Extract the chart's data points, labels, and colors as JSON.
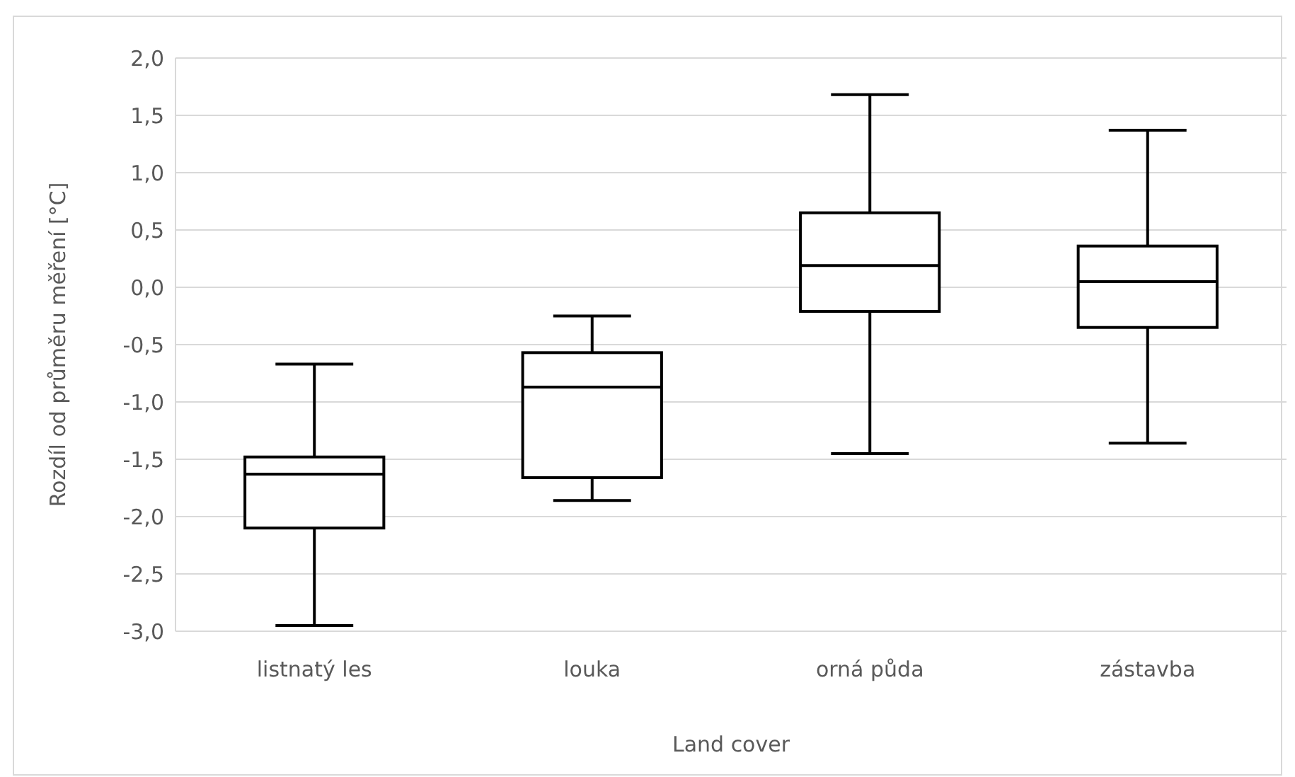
{
  "chart_data": {
    "type": "box",
    "xlabel": "Land cover",
    "ylabel": "Rozdíl od průměru měření [°C]",
    "categories": [
      "listnatý les",
      "louka",
      "orná půda",
      "zástavba"
    ],
    "boxes": [
      {
        "low": -2.95,
        "q1": -2.1,
        "median": -1.63,
        "q3": -1.48,
        "high": -0.67
      },
      {
        "low": -1.86,
        "q1": -1.66,
        "median": -0.87,
        "q3": -0.57,
        "high": -0.25
      },
      {
        "low": -1.45,
        "q1": -0.21,
        "median": 0.19,
        "q3": 0.65,
        "high": 1.68
      },
      {
        "low": -1.36,
        "q1": -0.35,
        "median": 0.05,
        "q3": 0.36,
        "high": 1.37
      }
    ],
    "color": "#000000",
    "ylim": [
      -3,
      2
    ],
    "yticks": [
      {
        "value": -3,
        "label": "-3,0"
      },
      {
        "value": -2.5,
        "label": "-2,5"
      },
      {
        "value": -2,
        "label": "-2,0"
      },
      {
        "value": -1.5,
        "label": "-1,5"
      },
      {
        "value": -1,
        "label": "-1,0"
      },
      {
        "value": -0.5,
        "label": "-0,5"
      },
      {
        "value": 0,
        "label": "0,0"
      },
      {
        "value": 0.5,
        "label": "0,5"
      },
      {
        "value": 1,
        "label": "1,0"
      },
      {
        "value": 1.5,
        "label": "1,5"
      },
      {
        "value": 2,
        "label": "2,0"
      }
    ],
    "grid": "y"
  }
}
